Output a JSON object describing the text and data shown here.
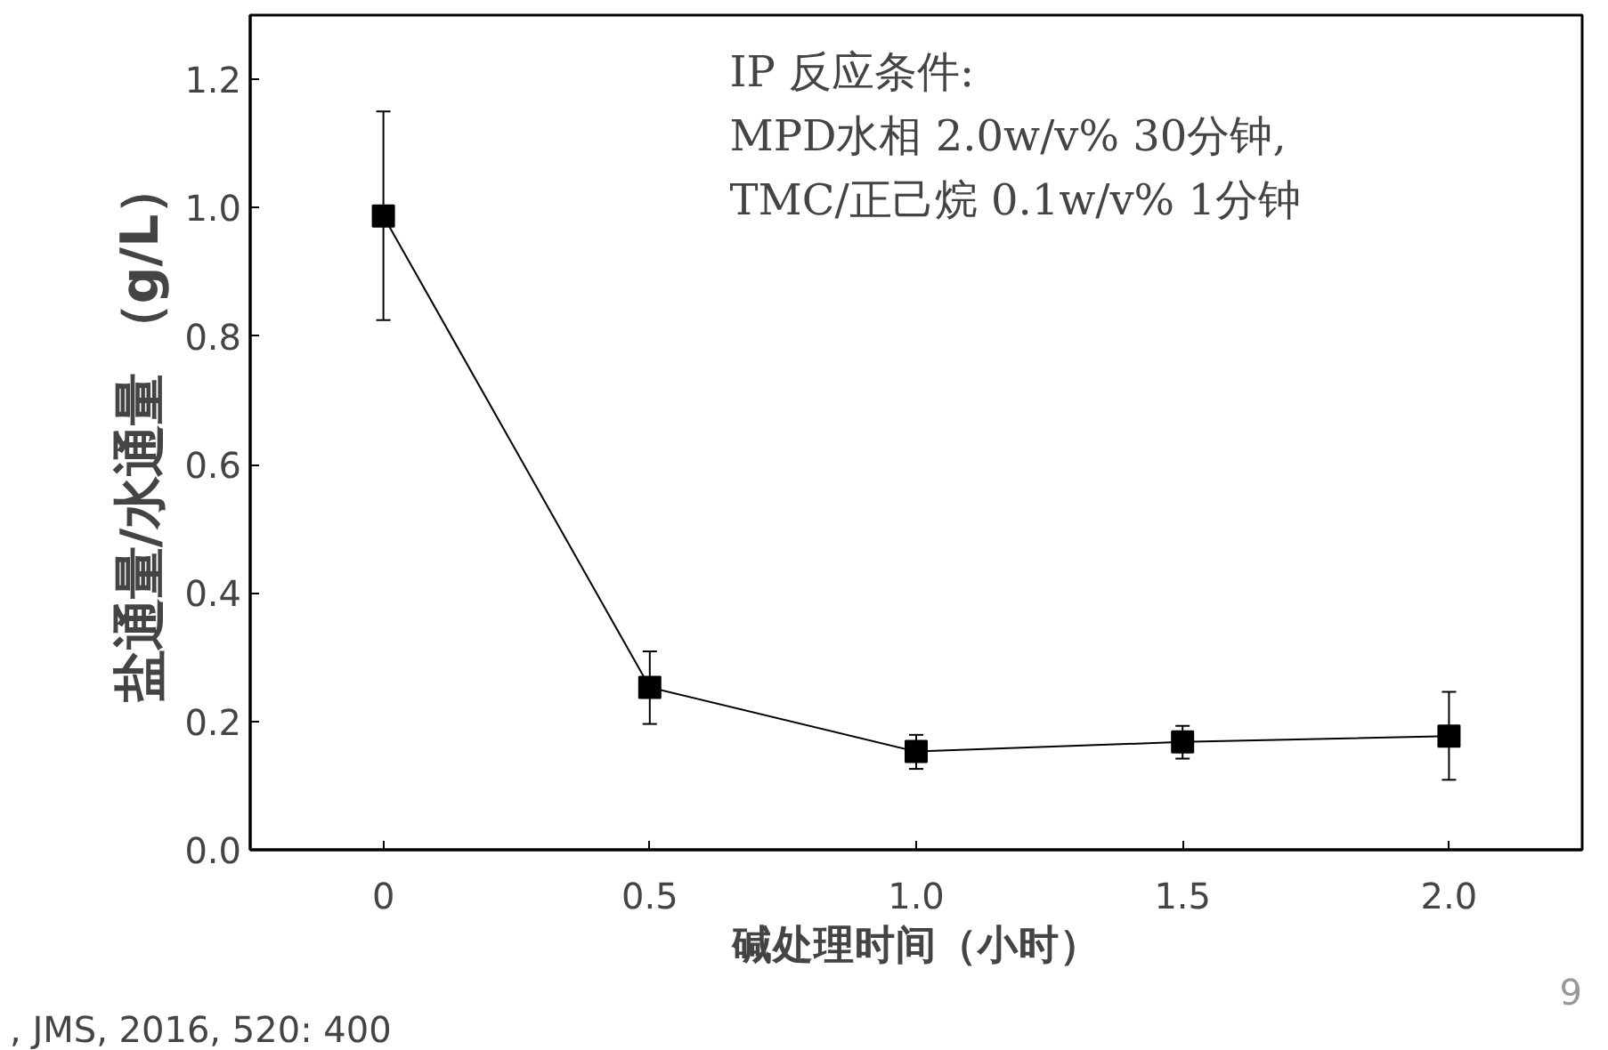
{
  "chart_data": {
    "type": "line",
    "xlabel": "碱处理时间（小时）",
    "ylabel": "盐通量/水通量 （g/L）",
    "x": [
      0,
      0.5,
      1.0,
      1.5,
      2.0
    ],
    "series": [
      {
        "color": "#000000",
        "values": [
          0.987,
          0.253,
          0.153,
          0.168,
          0.177
        ],
        "errors": [
          [
            0.825,
            1.15
          ],
          [
            0.196,
            0.309
          ],
          [
            0.126,
            0.179
          ],
          [
            0.142,
            0.193
          ],
          [
            0.109,
            0.246
          ]
        ]
      }
    ],
    "xlim": [
      -0.25,
      2.25
    ],
    "ylim": [
      0,
      1.3
    ],
    "xticks": [
      0,
      0.5,
      {
        "value": 1.0,
        "label": "1.0"
      },
      1.5,
      {
        "value": 2.0,
        "label": "2.0"
      }
    ],
    "yticks": [
      {
        "value": 0,
        "label": "0.0"
      },
      0.2,
      0.4,
      0.6,
      0.8,
      {
        "value": 1.0,
        "label": "1.0"
      },
      1.2
    ],
    "marker": "square",
    "line_style": "solid",
    "grid": false,
    "annotations": [
      "IP 反应条件:",
      "MPD水相 2.0w/v% 30分钟,",
      "TMC/正己烷 0.1w/v% 1分钟",
      ", JMS, 2016, 520: 400",
      "9"
    ]
  }
}
